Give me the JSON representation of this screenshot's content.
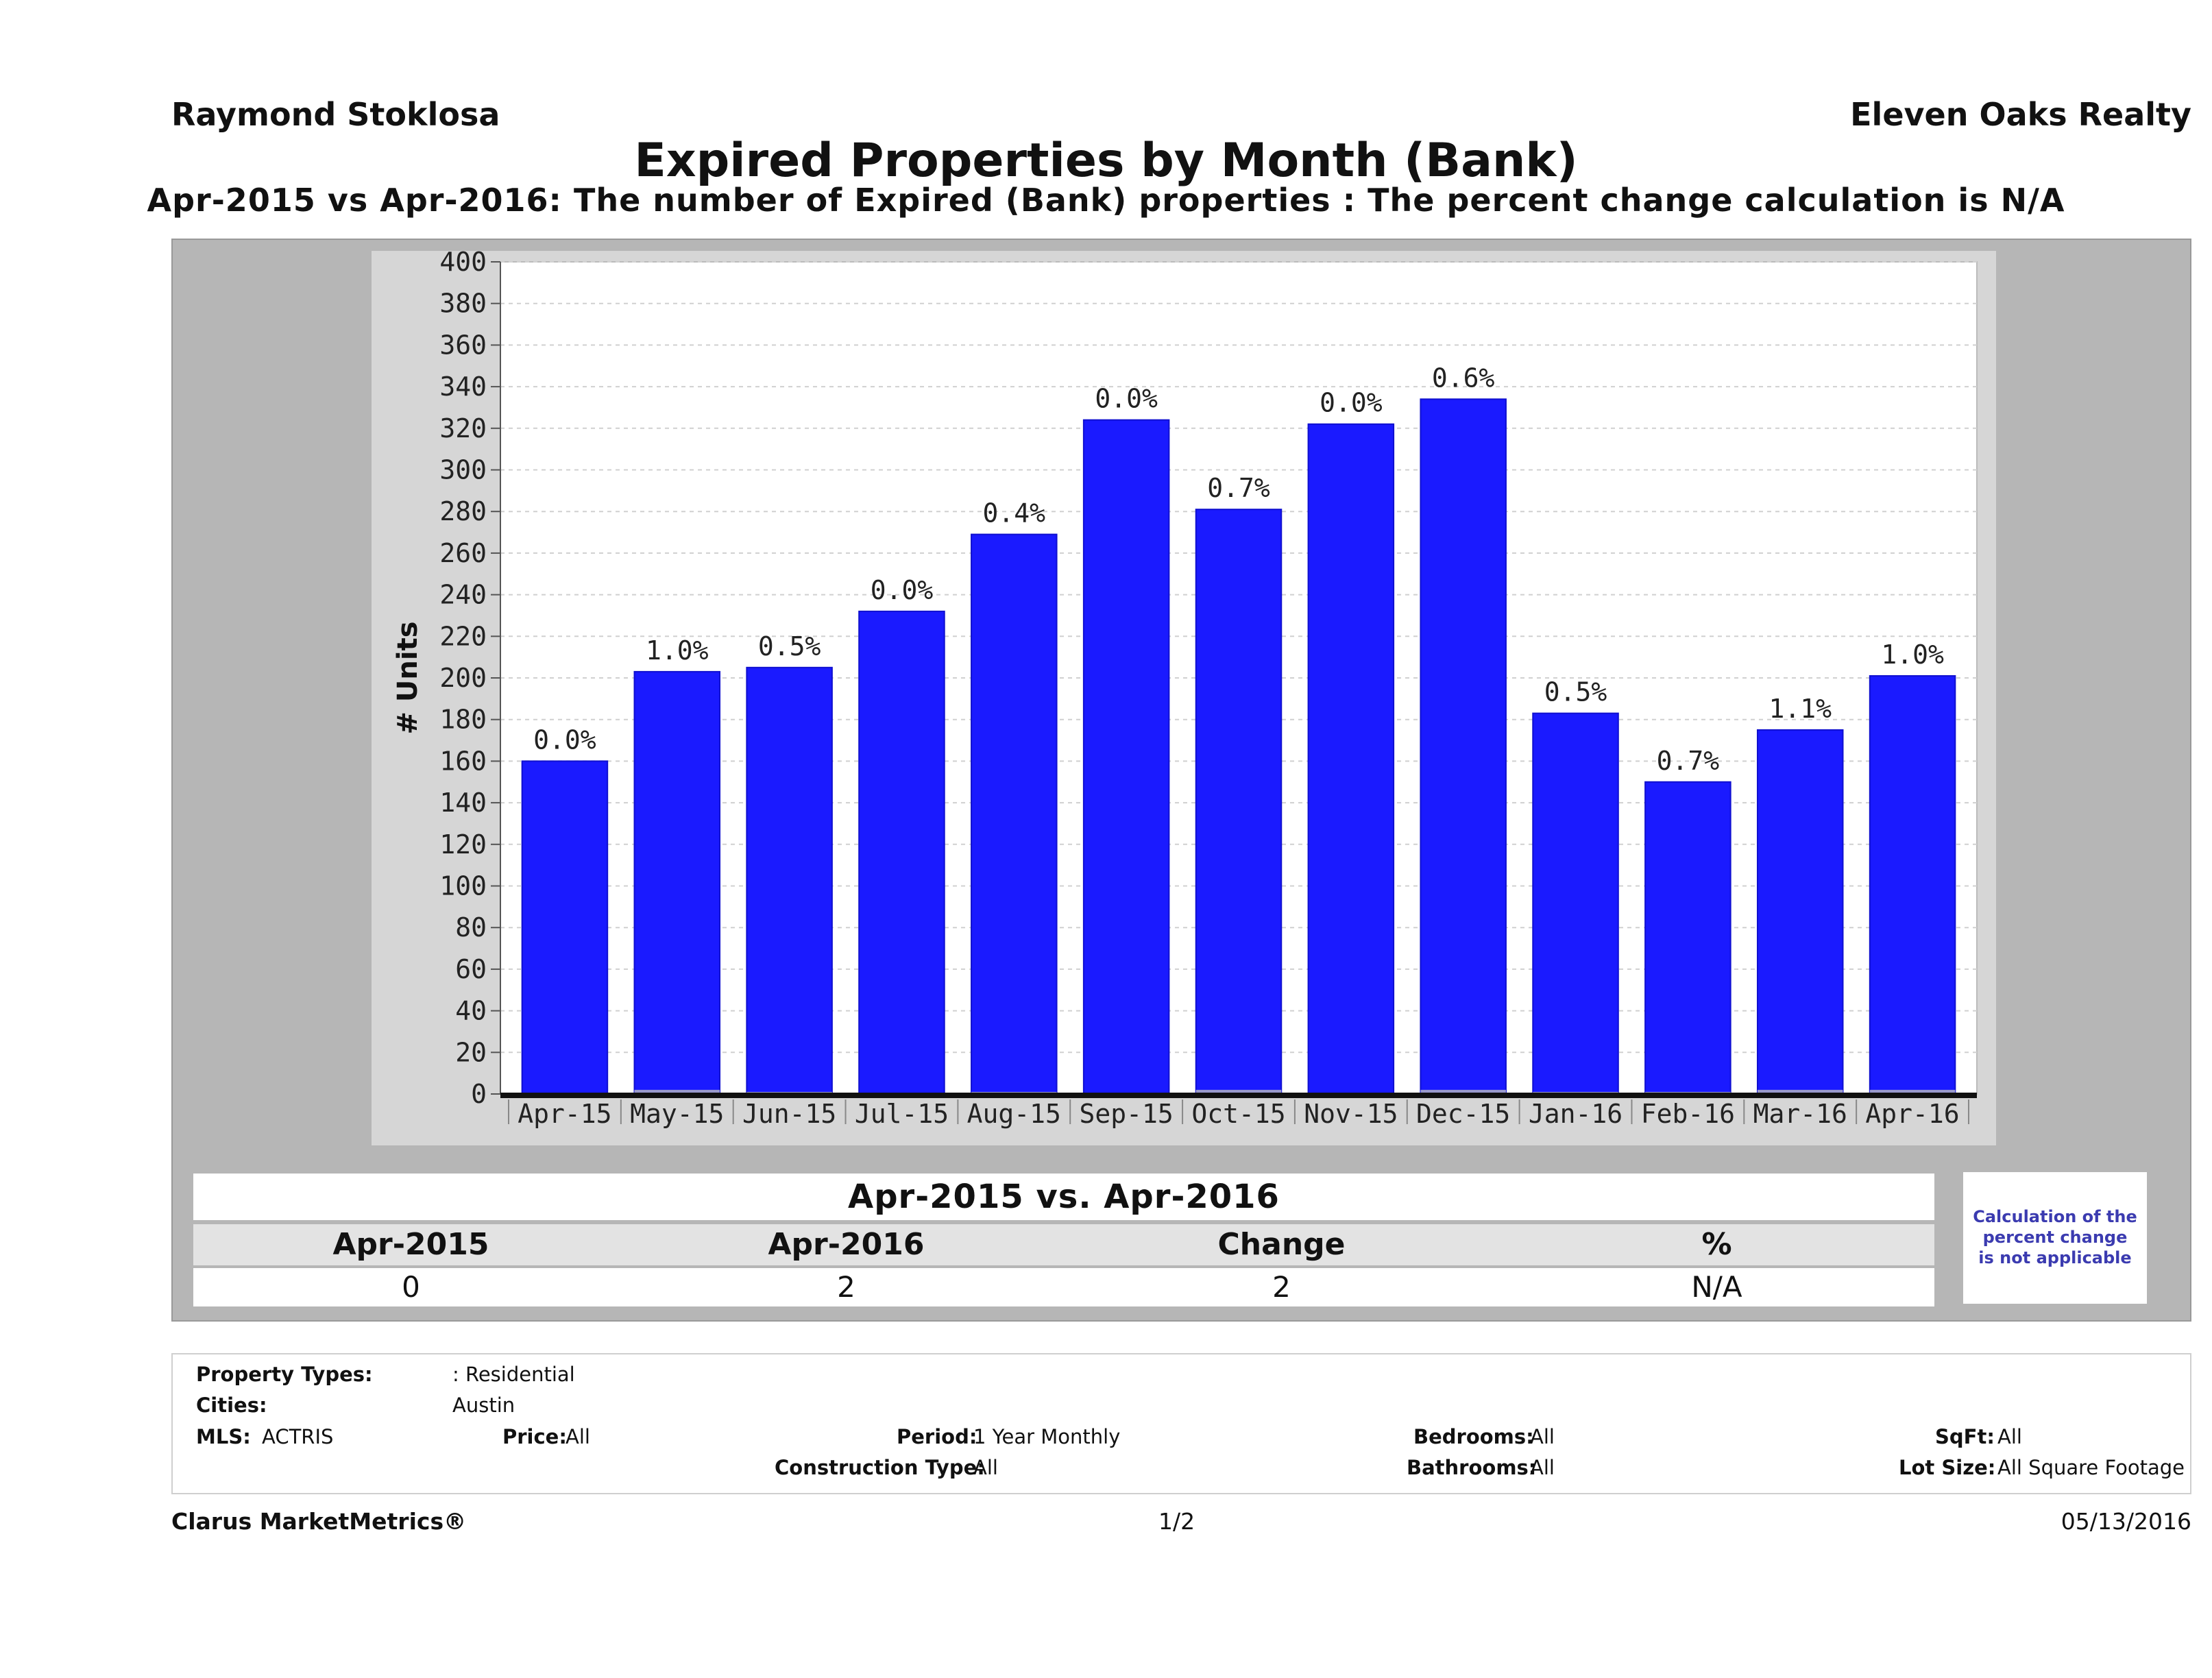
{
  "header": {
    "agent": "Raymond Stoklosa",
    "company": "Eleven Oaks Realty"
  },
  "title": "Expired Properties by Month (Bank)",
  "subtitle": "Apr-2015 vs Apr-2016: The number of Expired (Bank)  properties :  The percent change calculation is N/A",
  "chart_data": {
    "type": "bar",
    "title": "Expired Properties by Month (Bank)",
    "xlabel": "",
    "ylabel": "# Units",
    "ylim": [
      0,
      400
    ],
    "ytick_step": 20,
    "grid": true,
    "categories": [
      "Apr-15",
      "May-15",
      "Jun-15",
      "Jul-15",
      "Aug-15",
      "Sep-15",
      "Oct-15",
      "Nov-15",
      "Dec-15",
      "Jan-16",
      "Feb-16",
      "Mar-16",
      "Apr-16"
    ],
    "values": [
      160,
      203,
      205,
      232,
      269,
      324,
      281,
      322,
      334,
      183,
      150,
      175,
      201
    ],
    "base_values": [
      0,
      2,
      1,
      0,
      1,
      0,
      2,
      0,
      2,
      1,
      1,
      2,
      2
    ],
    "bar_labels": [
      "0.0%",
      "1.0%",
      "0.5%",
      "0.0%",
      "0.4%",
      "0.0%",
      "0.7%",
      "0.0%",
      "0.6%",
      "0.5%",
      "0.7%",
      "1.1%",
      "1.0%"
    ],
    "bar_color": "#1a1aff"
  },
  "comparison": {
    "title": "Apr-2015 vs. Apr-2016",
    "headers": [
      "Apr-2015",
      "Apr-2016",
      "Change",
      "%"
    ],
    "values": [
      "0",
      "2",
      "2",
      "N/A"
    ],
    "note_lines": [
      "Calculation of the",
      "percent change",
      "is not applicable"
    ]
  },
  "criteria": {
    "property_types_label": "Property Types:",
    "property_types_value": ": Residential",
    "cities_label": "Cities:",
    "cities_value": "Austin",
    "mls_label": "MLS:",
    "mls_value": "ACTRIS",
    "price_label": "Price:",
    "price_value": "All",
    "period_label": "Period:",
    "period_value": "1 Year Monthly",
    "construction_label": "Construction Type:",
    "construction_value": "All",
    "bedrooms_label": "Bedrooms:",
    "bedrooms_value": "All",
    "bathrooms_label": "Bathrooms:",
    "bathrooms_value": "All",
    "sqft_label": "SqFt:",
    "sqft_value": "All",
    "lotsize_label": "Lot Size:",
    "lotsize_value": "All Square Footage"
  },
  "footer": {
    "brand": "Clarus MarketMetrics®",
    "page": "1/2",
    "date": "05/13/2016"
  }
}
